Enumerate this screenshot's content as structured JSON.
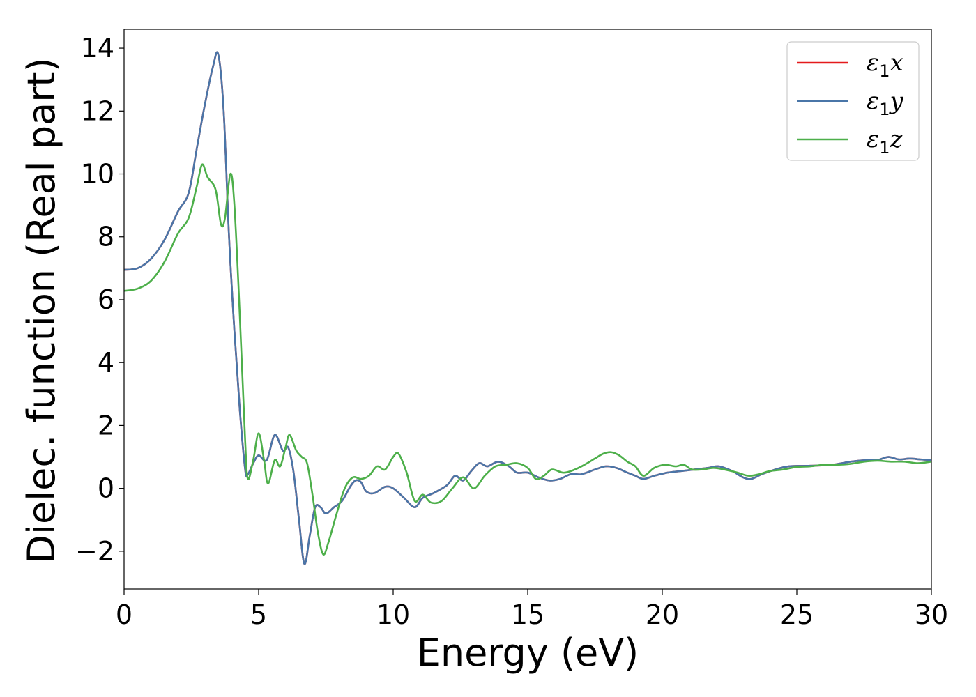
{
  "chart_data": {
    "type": "line",
    "title": "",
    "xlabel": "Energy (eV)",
    "ylabel": "Dielec. function (Real part)",
    "xlim": [
      0,
      30
    ],
    "ylim": [
      -3.2,
      14.6
    ],
    "xticks": [
      0,
      5,
      10,
      15,
      20,
      25,
      30
    ],
    "yticks": [
      -2,
      0,
      2,
      4,
      6,
      8,
      10,
      12,
      14
    ],
    "xtick_labels": [
      "0",
      "5",
      "10",
      "15",
      "20",
      "25",
      "30"
    ],
    "ytick_labels": [
      "−2",
      "0",
      "2",
      "4",
      "6",
      "8",
      "10",
      "12",
      "14"
    ],
    "grid": false,
    "legend_position": "top-right",
    "series": [
      {
        "name": "ε1x",
        "symbol": "ε",
        "subscript": "1",
        "axis": "x",
        "color": "#e41a1c",
        "points": [
          [
            0,
            6.95
          ],
          [
            0.5,
            7.0
          ],
          [
            1.0,
            7.3
          ],
          [
            1.5,
            7.9
          ],
          [
            2.0,
            8.8
          ],
          [
            2.4,
            9.4
          ],
          [
            2.7,
            10.8
          ],
          [
            3.0,
            12.2
          ],
          [
            3.3,
            13.4
          ],
          [
            3.5,
            13.8
          ],
          [
            3.7,
            12.0
          ],
          [
            3.9,
            8.0
          ],
          [
            4.1,
            5.0
          ],
          [
            4.3,
            2.5
          ],
          [
            4.5,
            0.6
          ],
          [
            4.6,
            0.45
          ],
          [
            4.8,
            0.8
          ],
          [
            5.0,
            1.05
          ],
          [
            5.3,
            0.9
          ],
          [
            5.6,
            1.7
          ],
          [
            5.9,
            1.2
          ],
          [
            6.1,
            1.3
          ],
          [
            6.3,
            0.5
          ],
          [
            6.5,
            -1.0
          ],
          [
            6.7,
            -2.4
          ],
          [
            6.9,
            -1.5
          ],
          [
            7.1,
            -0.6
          ],
          [
            7.3,
            -0.6
          ],
          [
            7.5,
            -0.8
          ],
          [
            7.8,
            -0.6
          ],
          [
            8.1,
            -0.4
          ],
          [
            8.4,
            0.05
          ],
          [
            8.6,
            0.25
          ],
          [
            8.8,
            0.2
          ],
          [
            9.0,
            -0.1
          ],
          [
            9.3,
            -0.15
          ],
          [
            9.7,
            0.05
          ],
          [
            10.0,
            0.0
          ],
          [
            10.4,
            -0.3
          ],
          [
            10.8,
            -0.6
          ],
          [
            11.1,
            -0.3
          ],
          [
            11.5,
            -0.15
          ],
          [
            12.0,
            0.1
          ],
          [
            12.3,
            0.4
          ],
          [
            12.6,
            0.25
          ],
          [
            12.9,
            0.55
          ],
          [
            13.2,
            0.8
          ],
          [
            13.5,
            0.7
          ],
          [
            13.9,
            0.85
          ],
          [
            14.3,
            0.7
          ],
          [
            14.6,
            0.5
          ],
          [
            15.0,
            0.5
          ],
          [
            15.4,
            0.35
          ],
          [
            15.8,
            0.25
          ],
          [
            16.2,
            0.3
          ],
          [
            16.6,
            0.45
          ],
          [
            17.0,
            0.45
          ],
          [
            17.5,
            0.6
          ],
          [
            17.9,
            0.7
          ],
          [
            18.3,
            0.65
          ],
          [
            18.7,
            0.5
          ],
          [
            19.0,
            0.4
          ],
          [
            19.3,
            0.3
          ],
          [
            19.7,
            0.4
          ],
          [
            20.2,
            0.5
          ],
          [
            20.7,
            0.55
          ],
          [
            21.2,
            0.6
          ],
          [
            21.7,
            0.65
          ],
          [
            22.1,
            0.7
          ],
          [
            22.6,
            0.55
          ],
          [
            23.0,
            0.35
          ],
          [
            23.3,
            0.3
          ],
          [
            23.7,
            0.45
          ],
          [
            24.2,
            0.6
          ],
          [
            24.7,
            0.7
          ],
          [
            25.5,
            0.72
          ],
          [
            26.3,
            0.75
          ],
          [
            27.0,
            0.85
          ],
          [
            27.6,
            0.9
          ],
          [
            28.0,
            0.9
          ],
          [
            28.4,
            1.0
          ],
          [
            28.8,
            0.92
          ],
          [
            29.2,
            0.95
          ],
          [
            29.6,
            0.92
          ],
          [
            30.0,
            0.9
          ]
        ]
      },
      {
        "name": "ε1y",
        "symbol": "ε",
        "subscript": "1",
        "axis": "y",
        "color": "#4a76a8",
        "points": [
          [
            0,
            6.95
          ],
          [
            0.5,
            7.0
          ],
          [
            1.0,
            7.3
          ],
          [
            1.5,
            7.9
          ],
          [
            2.0,
            8.8
          ],
          [
            2.4,
            9.4
          ],
          [
            2.7,
            10.8
          ],
          [
            3.0,
            12.2
          ],
          [
            3.3,
            13.4
          ],
          [
            3.5,
            13.8
          ],
          [
            3.7,
            12.0
          ],
          [
            3.9,
            8.0
          ],
          [
            4.1,
            5.0
          ],
          [
            4.3,
            2.5
          ],
          [
            4.5,
            0.6
          ],
          [
            4.6,
            0.45
          ],
          [
            4.8,
            0.8
          ],
          [
            5.0,
            1.05
          ],
          [
            5.3,
            0.9
          ],
          [
            5.6,
            1.7
          ],
          [
            5.9,
            1.2
          ],
          [
            6.1,
            1.3
          ],
          [
            6.3,
            0.5
          ],
          [
            6.5,
            -1.0
          ],
          [
            6.7,
            -2.4
          ],
          [
            6.9,
            -1.5
          ],
          [
            7.1,
            -0.6
          ],
          [
            7.3,
            -0.6
          ],
          [
            7.5,
            -0.8
          ],
          [
            7.8,
            -0.6
          ],
          [
            8.1,
            -0.4
          ],
          [
            8.4,
            0.05
          ],
          [
            8.6,
            0.25
          ],
          [
            8.8,
            0.2
          ],
          [
            9.0,
            -0.1
          ],
          [
            9.3,
            -0.15
          ],
          [
            9.7,
            0.05
          ],
          [
            10.0,
            0.0
          ],
          [
            10.4,
            -0.3
          ],
          [
            10.8,
            -0.6
          ],
          [
            11.1,
            -0.3
          ],
          [
            11.5,
            -0.15
          ],
          [
            12.0,
            0.1
          ],
          [
            12.3,
            0.4
          ],
          [
            12.6,
            0.25
          ],
          [
            12.9,
            0.55
          ],
          [
            13.2,
            0.8
          ],
          [
            13.5,
            0.7
          ],
          [
            13.9,
            0.85
          ],
          [
            14.3,
            0.7
          ],
          [
            14.6,
            0.5
          ],
          [
            15.0,
            0.5
          ],
          [
            15.4,
            0.35
          ],
          [
            15.8,
            0.25
          ],
          [
            16.2,
            0.3
          ],
          [
            16.6,
            0.45
          ],
          [
            17.0,
            0.45
          ],
          [
            17.5,
            0.6
          ],
          [
            17.9,
            0.7
          ],
          [
            18.3,
            0.65
          ],
          [
            18.7,
            0.5
          ],
          [
            19.0,
            0.4
          ],
          [
            19.3,
            0.3
          ],
          [
            19.7,
            0.4
          ],
          [
            20.2,
            0.5
          ],
          [
            20.7,
            0.55
          ],
          [
            21.2,
            0.6
          ],
          [
            21.7,
            0.65
          ],
          [
            22.1,
            0.7
          ],
          [
            22.6,
            0.55
          ],
          [
            23.0,
            0.35
          ],
          [
            23.3,
            0.3
          ],
          [
            23.7,
            0.45
          ],
          [
            24.2,
            0.6
          ],
          [
            24.7,
            0.7
          ],
          [
            25.5,
            0.72
          ],
          [
            26.3,
            0.75
          ],
          [
            27.0,
            0.85
          ],
          [
            27.6,
            0.9
          ],
          [
            28.0,
            0.9
          ],
          [
            28.4,
            1.0
          ],
          [
            28.8,
            0.92
          ],
          [
            29.2,
            0.95
          ],
          [
            29.6,
            0.92
          ],
          [
            30.0,
            0.9
          ]
        ]
      },
      {
        "name": "ε1z",
        "symbol": "ε",
        "subscript": "1",
        "axis": "z",
        "color": "#4daf4a",
        "points": [
          [
            0,
            6.28
          ],
          [
            0.5,
            6.35
          ],
          [
            1.0,
            6.6
          ],
          [
            1.5,
            7.2
          ],
          [
            2.0,
            8.1
          ],
          [
            2.4,
            8.6
          ],
          [
            2.7,
            9.6
          ],
          [
            2.9,
            10.3
          ],
          [
            3.1,
            9.9
          ],
          [
            3.4,
            9.5
          ],
          [
            3.6,
            8.4
          ],
          [
            3.75,
            8.6
          ],
          [
            3.95,
            10.0
          ],
          [
            4.1,
            9.0
          ],
          [
            4.3,
            5.5
          ],
          [
            4.5,
            1.5
          ],
          [
            4.6,
            0.3
          ],
          [
            4.8,
            0.9
          ],
          [
            5.0,
            1.75
          ],
          [
            5.2,
            0.9
          ],
          [
            5.35,
            0.15
          ],
          [
            5.6,
            0.9
          ],
          [
            5.8,
            0.7
          ],
          [
            6.0,
            1.3
          ],
          [
            6.15,
            1.7
          ],
          [
            6.4,
            1.2
          ],
          [
            6.6,
            1.0
          ],
          [
            6.8,
            0.8
          ],
          [
            7.0,
            -0.2
          ],
          [
            7.2,
            -1.4
          ],
          [
            7.4,
            -2.1
          ],
          [
            7.6,
            -1.7
          ],
          [
            7.9,
            -0.8
          ],
          [
            8.2,
            0.0
          ],
          [
            8.5,
            0.35
          ],
          [
            8.8,
            0.3
          ],
          [
            9.1,
            0.4
          ],
          [
            9.4,
            0.7
          ],
          [
            9.7,
            0.6
          ],
          [
            10.0,
            1.0
          ],
          [
            10.2,
            1.1
          ],
          [
            10.5,
            0.5
          ],
          [
            10.8,
            -0.4
          ],
          [
            11.1,
            -0.2
          ],
          [
            11.4,
            -0.45
          ],
          [
            11.8,
            -0.4
          ],
          [
            12.2,
            0.0
          ],
          [
            12.6,
            0.35
          ],
          [
            13.0,
            0.0
          ],
          [
            13.4,
            0.4
          ],
          [
            13.8,
            0.7
          ],
          [
            14.2,
            0.75
          ],
          [
            14.6,
            0.8
          ],
          [
            15.0,
            0.65
          ],
          [
            15.3,
            0.3
          ],
          [
            15.6,
            0.4
          ],
          [
            15.9,
            0.6
          ],
          [
            16.3,
            0.5
          ],
          [
            16.6,
            0.55
          ],
          [
            17.0,
            0.7
          ],
          [
            17.5,
            0.95
          ],
          [
            17.8,
            1.1
          ],
          [
            18.1,
            1.15
          ],
          [
            18.4,
            1.05
          ],
          [
            18.7,
            0.85
          ],
          [
            19.0,
            0.7
          ],
          [
            19.3,
            0.4
          ],
          [
            19.7,
            0.65
          ],
          [
            20.1,
            0.75
          ],
          [
            20.5,
            0.7
          ],
          [
            20.8,
            0.75
          ],
          [
            21.1,
            0.6
          ],
          [
            21.5,
            0.6
          ],
          [
            21.9,
            0.65
          ],
          [
            22.3,
            0.6
          ],
          [
            22.8,
            0.5
          ],
          [
            23.2,
            0.4
          ],
          [
            23.6,
            0.45
          ],
          [
            24.0,
            0.55
          ],
          [
            24.5,
            0.6
          ],
          [
            25.0,
            0.68
          ],
          [
            25.5,
            0.7
          ],
          [
            26.0,
            0.75
          ],
          [
            26.5,
            0.75
          ],
          [
            27.0,
            0.78
          ],
          [
            27.5,
            0.85
          ],
          [
            28.0,
            0.88
          ],
          [
            28.5,
            0.85
          ],
          [
            29.0,
            0.85
          ],
          [
            29.5,
            0.8
          ],
          [
            30.0,
            0.85
          ]
        ]
      }
    ]
  }
}
